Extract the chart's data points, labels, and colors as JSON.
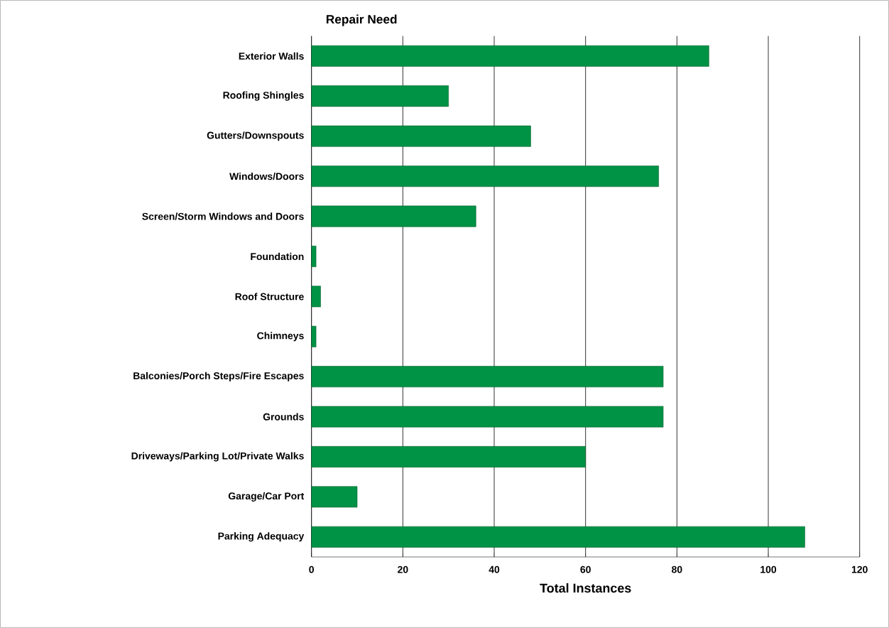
{
  "chart_data": {
    "type": "bar",
    "orientation": "horizontal",
    "title": "Repair Need",
    "xlabel": "Total Instances",
    "categories": [
      "Exterior Walls",
      "Roofing Shingles",
      "Gutters/Downspouts",
      "Windows/Doors",
      "Screen/Storm Windows and Doors",
      "Foundation",
      "Roof Structure",
      "Chimneys",
      "Balconies/Porch Steps/Fire Escapes",
      "Grounds",
      "Driveways/Parking Lot/Private Walks",
      "Garage/Car Port",
      "Parking Adequacy"
    ],
    "values": [
      87,
      30,
      48,
      76,
      36,
      1,
      2,
      1,
      77,
      77,
      60,
      10,
      108
    ],
    "color": "#009245",
    "xlim": [
      0,
      120
    ],
    "xticks": [
      0,
      20,
      40,
      60,
      80,
      100,
      120
    ],
    "grid": "x"
  }
}
